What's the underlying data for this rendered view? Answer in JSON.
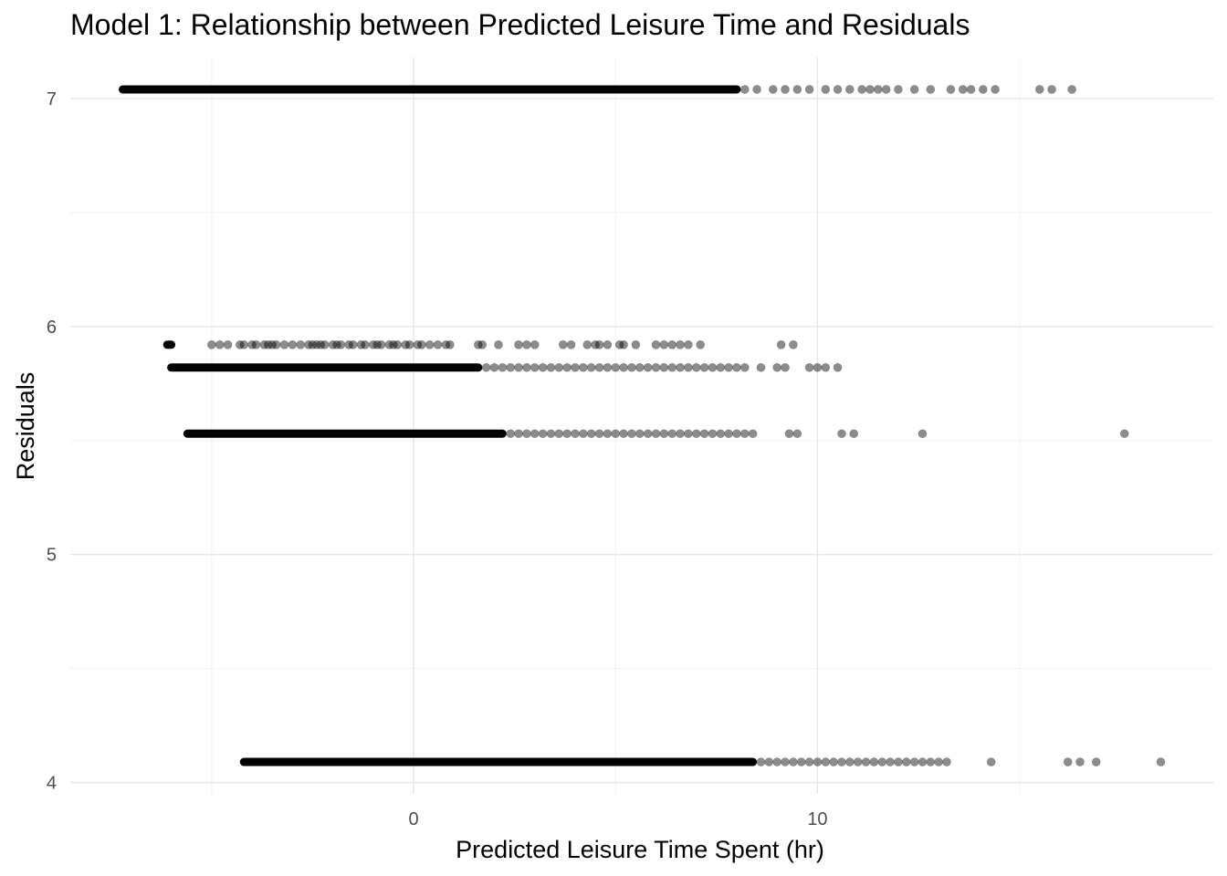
{
  "chart_data": {
    "type": "scatter",
    "title": "Model 1: Relationship between Predicted Leisure Time and Residuals",
    "xlabel": "Predicted Leisure Time Spent (hr)",
    "ylabel": "Residuals",
    "xlim": [
      -8.5,
      19.8
    ],
    "ylim": [
      3.95,
      7.18
    ],
    "x_ticks": [
      0,
      10
    ],
    "x_tick_labels": [
      "0",
      "10"
    ],
    "x_minor_grid": [
      -5,
      5,
      15
    ],
    "y_ticks": [
      4,
      5,
      6,
      7
    ],
    "y_tick_labels": [
      "4",
      "5",
      "6",
      "7"
    ],
    "y_minor_grid": [
      4.5,
      5.5,
      6.5
    ],
    "grid": true,
    "point_color": "#000000",
    "point_alpha": 0.45,
    "bands": [
      {
        "y": 7.04,
        "dense_range": [
          -7.2,
          8.0
        ],
        "tail_x": [
          8.2,
          8.5,
          8.9,
          9.2,
          9.5,
          9.8,
          10.2,
          10.5,
          10.8,
          11.1,
          11.3,
          11.5,
          11.7,
          12.0,
          12.4,
          12.8,
          13.3,
          13.6,
          13.8,
          14.1,
          14.4,
          15.5,
          15.8,
          16.3
        ]
      },
      {
        "y": 5.92,
        "dense_range": [
          -6.1,
          -6.0
        ],
        "tail_x": [
          -5.0,
          -4.8,
          -4.6,
          -4.3,
          -4.2,
          -4.0,
          -3.9,
          -3.7,
          -3.6,
          -3.5,
          -3.4,
          -3.2,
          -3.0,
          -2.8,
          -2.6,
          -2.5,
          -2.4,
          -2.3,
          -2.2,
          -2.0,
          -1.9,
          -1.8,
          -1.6,
          -1.5,
          -1.3,
          -1.2,
          -1.0,
          -0.9,
          -0.8,
          -0.6,
          -0.5,
          -0.4,
          -0.2,
          -0.1,
          0.1,
          0.2,
          0.4,
          0.6,
          0.8,
          0.9,
          1.6,
          1.7,
          2.1,
          2.6,
          2.8,
          3.0,
          3.7,
          3.9,
          4.3,
          4.5,
          4.6,
          4.8,
          5.1,
          5.2,
          5.5,
          6.0,
          6.2,
          6.4,
          6.6,
          6.8,
          7.1,
          9.1,
          9.4
        ]
      },
      {
        "y": 5.82,
        "dense_range": [
          -6.0,
          1.6
        ],
        "tail_x": [
          1.8,
          2.0,
          2.2,
          2.4,
          2.6,
          2.8,
          3.0,
          3.2,
          3.4,
          3.6,
          3.8,
          4.0,
          4.2,
          4.4,
          4.6,
          4.8,
          5.0,
          5.2,
          5.4,
          5.6,
          5.8,
          6.0,
          6.2,
          6.4,
          6.6,
          6.8,
          7.0,
          7.2,
          7.4,
          7.6,
          7.8,
          8.0,
          8.2,
          8.6,
          9.0,
          9.2,
          9.8,
          10.0,
          10.2,
          10.5
        ]
      },
      {
        "y": 5.53,
        "dense_range": [
          -5.6,
          2.2
        ],
        "tail_x": [
          2.4,
          2.6,
          2.8,
          3.0,
          3.2,
          3.4,
          3.6,
          3.8,
          4.0,
          4.2,
          4.4,
          4.6,
          4.8,
          5.0,
          5.2,
          5.4,
          5.6,
          5.8,
          6.0,
          6.2,
          6.4,
          6.6,
          6.8,
          7.0,
          7.2,
          7.4,
          7.6,
          7.8,
          8.0,
          8.2,
          8.4,
          9.3,
          9.5,
          10.6,
          10.9,
          12.6,
          17.6
        ]
      },
      {
        "y": 4.09,
        "dense_range": [
          -4.2,
          8.4
        ],
        "tail_x": [
          8.6,
          8.8,
          9.0,
          9.2,
          9.4,
          9.6,
          9.8,
          10.0,
          10.2,
          10.4,
          10.6,
          10.8,
          11.0,
          11.2,
          11.4,
          11.6,
          11.8,
          12.0,
          12.2,
          12.4,
          12.6,
          12.8,
          13.0,
          13.2,
          14.3,
          16.2,
          16.5,
          16.9,
          18.5
        ]
      }
    ]
  }
}
